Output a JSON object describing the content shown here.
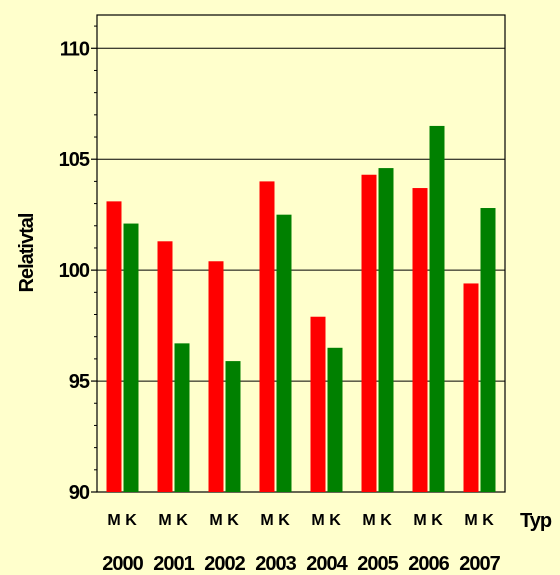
{
  "chart_data": {
    "type": "bar",
    "title": "",
    "ylabel": "Relativtal",
    "xlabel": "Typ",
    "ylim": [
      90,
      111.5
    ],
    "yticks": [
      90,
      95,
      100,
      105,
      110
    ],
    "grid": true,
    "legend": "none",
    "subcategories": [
      "M",
      "K"
    ],
    "colors": {
      "M": "#ff0000",
      "K": "#008000"
    },
    "groups": [
      {
        "year": "2000",
        "values": {
          "M": 103.1,
          "K": 102.1
        }
      },
      {
        "year": "2001",
        "values": {
          "M": 101.3,
          "K": 96.7
        }
      },
      {
        "year": "2002",
        "values": {
          "M": 100.4,
          "K": 95.9
        }
      },
      {
        "year": "2003",
        "values": {
          "M": 104.0,
          "K": 102.5
        }
      },
      {
        "year": "2004",
        "values": {
          "M": 97.9,
          "K": 96.5
        }
      },
      {
        "year": "2005",
        "values": {
          "M": 104.3,
          "K": 104.6
        }
      },
      {
        "year": "2006",
        "values": {
          "M": 103.7,
          "K": 106.5
        }
      },
      {
        "year": "2007",
        "values": {
          "M": 99.4,
          "K": 102.8
        }
      }
    ]
  }
}
